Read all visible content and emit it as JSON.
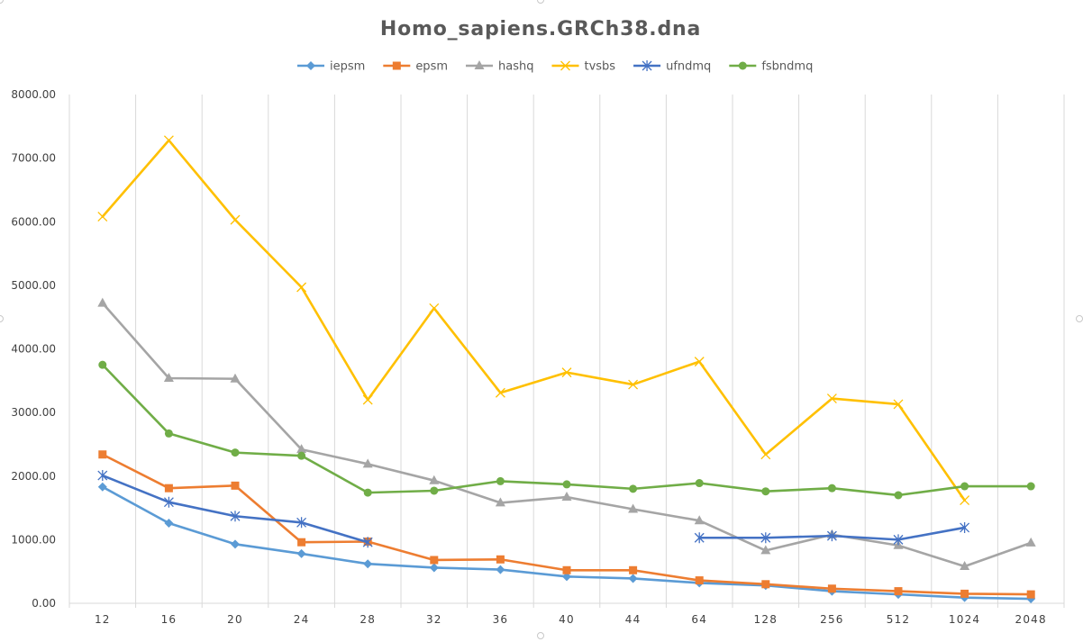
{
  "chart_data": {
    "type": "line",
    "title": "Homo_sapiens.GRCh38.dna",
    "xlabel": "",
    "ylabel": "",
    "categories": [
      "12",
      "16",
      "20",
      "24",
      "28",
      "32",
      "36",
      "40",
      "44",
      "64",
      "128",
      "256",
      "512",
      "1024",
      "2048"
    ],
    "ylim": [
      0,
      8000
    ],
    "yticks": [
      "0.00",
      "1000.00",
      "2000.00",
      "3000.00",
      "4000.00",
      "5000.00",
      "6000.00",
      "7000.00",
      "8000.00"
    ],
    "grid": "vertical",
    "legend_position": "top",
    "series": [
      {
        "name": "iepsm",
        "color": "#5B9BD5",
        "marker": "diamond",
        "values": [
          1830,
          1260,
          930,
          780,
          620,
          560,
          530,
          420,
          390,
          320,
          280,
          190,
          140,
          90,
          70
        ]
      },
      {
        "name": "epsm",
        "color": "#ED7D31",
        "marker": "square",
        "values": [
          2340,
          1810,
          1850,
          960,
          970,
          680,
          690,
          520,
          520,
          360,
          300,
          230,
          190,
          150,
          140
        ]
      },
      {
        "name": "hashq",
        "color": "#A5A5A5",
        "marker": "triangle",
        "values": [
          4720,
          3540,
          3530,
          2420,
          2190,
          1930,
          1580,
          1670,
          1480,
          1300,
          830,
          1080,
          910,
          580,
          950
        ]
      },
      {
        "name": "tvsbs",
        "color": "#FFC000",
        "marker": "x",
        "values": [
          6080,
          7280,
          6030,
          4970,
          3200,
          4640,
          3310,
          3630,
          3440,
          3800,
          2340,
          3220,
          3130,
          1620,
          null
        ]
      },
      {
        "name": "ufndmq",
        "color": "#4472C4",
        "marker": "star",
        "values": [
          2010,
          1590,
          1370,
          1270,
          960,
          null,
          null,
          null,
          null,
          1030,
          1030,
          1060,
          1000,
          1190,
          null
        ]
      },
      {
        "name": "fsbndmq",
        "color": "#70AD47",
        "marker": "circle",
        "values": [
          3750,
          2670,
          2370,
          2320,
          1740,
          1770,
          1920,
          1870,
          1800,
          1890,
          1760,
          1810,
          1700,
          1840,
          1840
        ]
      }
    ]
  }
}
